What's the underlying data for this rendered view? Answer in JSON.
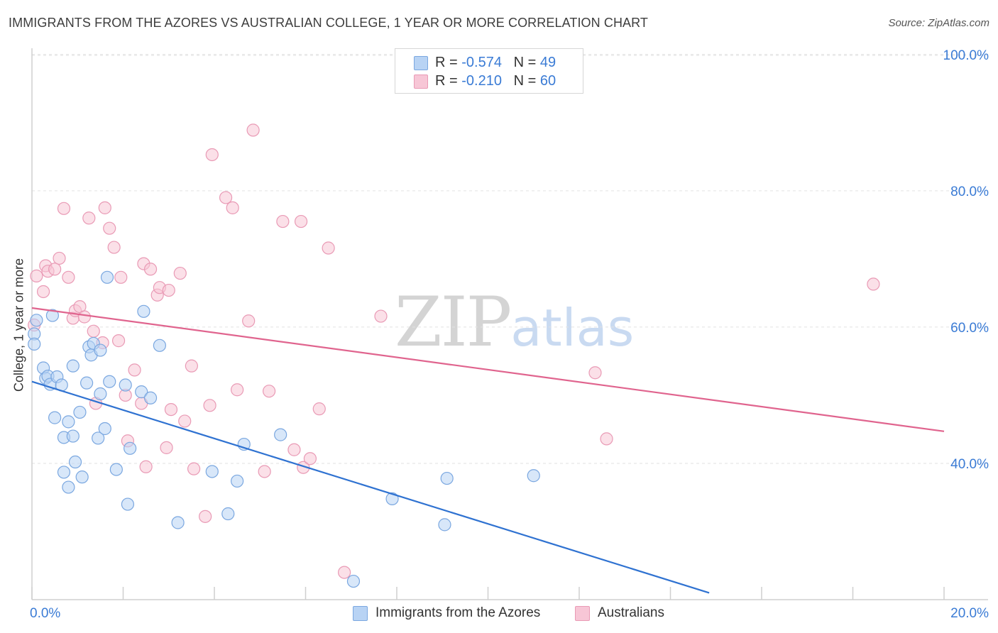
{
  "title": "IMMIGRANTS FROM THE AZORES VS AUSTRALIAN COLLEGE, 1 YEAR OR MORE CORRELATION CHART",
  "source": "Source: ZipAtlas.com",
  "watermark": {
    "zip": "ZIP",
    "atlas": "atlas"
  },
  "legend": {
    "rows": [
      {
        "r_label": "R = ",
        "r_value": "-0.574",
        "n_label": "N = ",
        "n_value": "49"
      },
      {
        "r_label": "R = ",
        "r_value": "-0.210",
        "n_label": "N = ",
        "n_value": "60"
      }
    ]
  },
  "colors": {
    "blue_fill": "#b8d3f4",
    "blue_stroke": "#7aa7e0",
    "blue_line": "#2f72d1",
    "pink_fill": "#f7c6d6",
    "pink_stroke": "#e99ab5",
    "pink_line": "#e0648e",
    "axis_label": "#3a7bd5",
    "grid": "#e2e2e2"
  },
  "chart_data": {
    "type": "scatter",
    "title": "IMMIGRANTS FROM THE AZORES VS AUSTRALIAN COLLEGE, 1 YEAR OR MORE CORRELATION CHART",
    "xlabel": "",
    "ylabel": "College, 1 year or more",
    "xlim": [
      0,
      20
    ],
    "ylim": [
      20,
      103
    ],
    "x_ticks": [
      0,
      20
    ],
    "x_tick_labels": [
      "0.0%",
      "20.0%"
    ],
    "y_ticks": [
      40,
      60,
      80,
      100
    ],
    "y_tick_labels": [
      "40.0%",
      "60.0%",
      "80.0%",
      "100.0%"
    ],
    "grid": true,
    "legend_placement": "top-center",
    "series": [
      {
        "name": "Immigrants from the Azores",
        "color": "#b8d3f4",
        "trend": {
          "x": [
            0,
            14.85
          ],
          "y": [
            52.0,
            21.0
          ]
        },
        "points": [
          [
            0.05,
            59.0
          ],
          [
            0.05,
            57.5
          ],
          [
            0.1,
            61.0
          ],
          [
            0.25,
            54.0
          ],
          [
            0.3,
            52.5
          ],
          [
            0.35,
            52.8
          ],
          [
            0.4,
            51.6
          ],
          [
            0.45,
            61.7
          ],
          [
            0.5,
            46.7
          ],
          [
            0.55,
            52.7
          ],
          [
            0.65,
            51.5
          ],
          [
            0.7,
            38.7
          ],
          [
            0.7,
            43.8
          ],
          [
            0.8,
            36.5
          ],
          [
            0.8,
            46.1
          ],
          [
            0.9,
            44.0
          ],
          [
            0.9,
            54.3
          ],
          [
            0.95,
            40.2
          ],
          [
            1.05,
            47.5
          ],
          [
            1.1,
            38.0
          ],
          [
            1.2,
            51.8
          ],
          [
            1.25,
            57.1
          ],
          [
            1.3,
            55.9
          ],
          [
            1.35,
            57.6
          ],
          [
            1.45,
            43.7
          ],
          [
            1.5,
            56.6
          ],
          [
            1.5,
            50.2
          ],
          [
            1.6,
            45.1
          ],
          [
            1.65,
            67.3
          ],
          [
            1.7,
            52.0
          ],
          [
            1.85,
            39.1
          ],
          [
            2.05,
            51.5
          ],
          [
            2.1,
            34.0
          ],
          [
            2.15,
            42.2
          ],
          [
            2.4,
            50.5
          ],
          [
            2.45,
            62.3
          ],
          [
            2.6,
            49.6
          ],
          [
            2.8,
            57.3
          ],
          [
            3.2,
            31.3
          ],
          [
            3.95,
            38.8
          ],
          [
            4.3,
            32.6
          ],
          [
            4.5,
            37.4
          ],
          [
            4.65,
            42.8
          ],
          [
            5.45,
            44.2
          ],
          [
            7.05,
            22.7
          ],
          [
            7.9,
            34.8
          ],
          [
            9.05,
            31.0
          ],
          [
            9.1,
            37.8
          ],
          [
            11.0,
            38.2
          ]
        ]
      },
      {
        "name": "Australians",
        "color": "#f7c6d6",
        "trend": {
          "x": [
            0,
            20
          ],
          "y": [
            62.8,
            44.7
          ]
        },
        "points": [
          [
            0.05,
            60.3
          ],
          [
            0.1,
            67.5
          ],
          [
            0.25,
            65.2
          ],
          [
            0.3,
            69.0
          ],
          [
            0.35,
            68.2
          ],
          [
            0.5,
            68.5
          ],
          [
            0.6,
            70.1
          ],
          [
            0.7,
            77.4
          ],
          [
            0.8,
            67.3
          ],
          [
            0.9,
            61.3
          ],
          [
            0.95,
            62.4
          ],
          [
            1.05,
            63.0
          ],
          [
            1.15,
            61.5
          ],
          [
            1.25,
            76.0
          ],
          [
            1.35,
            59.4
          ],
          [
            1.4,
            48.8
          ],
          [
            1.55,
            57.7
          ],
          [
            1.6,
            77.5
          ],
          [
            1.7,
            74.5
          ],
          [
            1.8,
            71.7
          ],
          [
            1.9,
            58.0
          ],
          [
            1.95,
            67.3
          ],
          [
            2.05,
            50.0
          ],
          [
            2.1,
            43.3
          ],
          [
            2.25,
            53.7
          ],
          [
            2.4,
            48.8
          ],
          [
            2.45,
            69.3
          ],
          [
            2.5,
            39.5
          ],
          [
            2.6,
            68.5
          ],
          [
            2.75,
            64.7
          ],
          [
            2.8,
            65.8
          ],
          [
            2.95,
            42.3
          ],
          [
            3.0,
            65.4
          ],
          [
            3.05,
            47.9
          ],
          [
            3.25,
            67.9
          ],
          [
            3.35,
            46.2
          ],
          [
            3.5,
            54.3
          ],
          [
            3.55,
            39.2
          ],
          [
            3.8,
            32.2
          ],
          [
            3.9,
            48.5
          ],
          [
            3.95,
            85.3
          ],
          [
            4.25,
            79.0
          ],
          [
            4.4,
            77.5
          ],
          [
            4.5,
            50.8
          ],
          [
            4.75,
            60.9
          ],
          [
            4.85,
            88.9
          ],
          [
            5.1,
            38.8
          ],
          [
            5.2,
            50.6
          ],
          [
            5.5,
            75.5
          ],
          [
            5.75,
            42.0
          ],
          [
            5.9,
            75.5
          ],
          [
            5.95,
            39.4
          ],
          [
            6.1,
            40.7
          ],
          [
            6.3,
            48.0
          ],
          [
            6.5,
            71.6
          ],
          [
            6.85,
            24.0
          ],
          [
            7.65,
            61.6
          ],
          [
            12.35,
            53.3
          ],
          [
            12.6,
            43.6
          ],
          [
            18.45,
            66.3
          ]
        ]
      }
    ]
  }
}
